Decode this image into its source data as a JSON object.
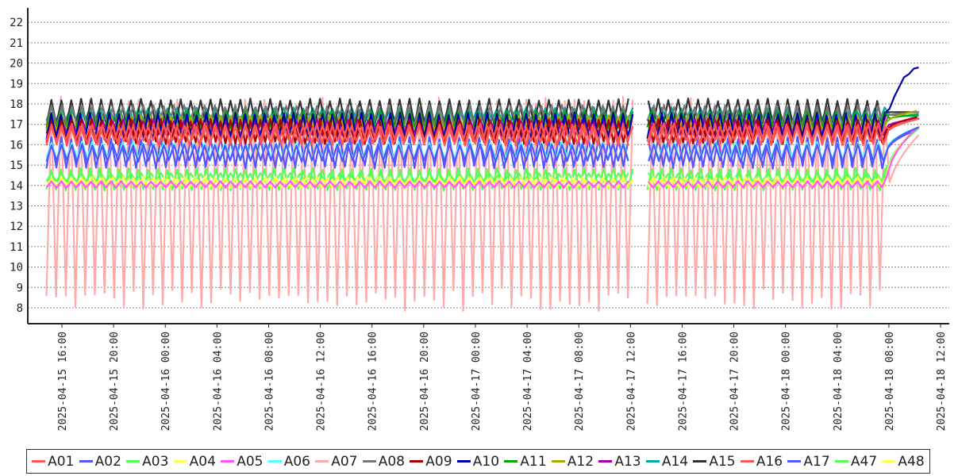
{
  "chart_data": {
    "type": "line",
    "title": "",
    "xlabel": "",
    "ylabel": "",
    "ylim": [
      7.2,
      22.7
    ],
    "yticks": [
      8,
      9,
      10,
      11,
      12,
      13,
      14,
      15,
      16,
      17,
      18,
      19,
      20,
      21,
      22
    ],
    "x_range_hours": [
      -1,
      68
    ],
    "x_ticks": [
      {
        "label": "2025-04-15 16:00",
        "hour": 0
      },
      {
        "label": "2025-04-15 20:00",
        "hour": 4
      },
      {
        "label": "2025-04-16 00:00",
        "hour": 8
      },
      {
        "label": "2025-04-16 04:00",
        "hour": 12
      },
      {
        "label": "2025-04-16 08:00",
        "hour": 16
      },
      {
        "label": "2025-04-16 12:00",
        "hour": 20
      },
      {
        "label": "2025-04-16 16:00",
        "hour": 24
      },
      {
        "label": "2025-04-16 20:00",
        "hour": 28
      },
      {
        "label": "2025-04-17 00:00",
        "hour": 32
      },
      {
        "label": "2025-04-17 04:00",
        "hour": 36
      },
      {
        "label": "2025-04-17 08:00",
        "hour": 40
      },
      {
        "label": "2025-04-17 12:00",
        "hour": 44
      },
      {
        "label": "2025-04-17 16:00",
        "hour": 48
      },
      {
        "label": "2025-04-17 20:00",
        "hour": 52
      },
      {
        "label": "2025-04-18 00:00",
        "hour": 56
      },
      {
        "label": "2025-04-18 04:00",
        "hour": 60
      },
      {
        "label": "2025-04-18 08:00",
        "hour": 64
      },
      {
        "label": "2025-04-18 12:00",
        "hour": 68
      }
    ],
    "data_start_hour": -1.2,
    "data_end_hour": 66.5,
    "gap_hours": [
      44.2,
      45.1
    ],
    "series": [
      {
        "name": "A07",
        "color": "#ffaaaa",
        "low": 8.4,
        "high": 17.8,
        "end_value": 16.6
      },
      {
        "name": "A02",
        "color": "#5555ff",
        "low": 14.9,
        "high": 16.3,
        "end_value": 16.8
      },
      {
        "name": "A06",
        "color": "#55ffff",
        "low": 15.3,
        "high": 16.1,
        "end_value": 16.9
      },
      {
        "name": "A03",
        "color": "#55ff55",
        "low": 13.8,
        "high": 14.8,
        "end_value": 16.9
      },
      {
        "name": "A47",
        "color": "#55ff55",
        "low": 14.2,
        "high": 14.6,
        "end_value": 16.9
      },
      {
        "name": "A04",
        "color": "#ffff55",
        "low": 13.9,
        "high": 14.4,
        "end_value": 17.0
      },
      {
        "name": "A48",
        "color": "#ffff55",
        "low": 14.0,
        "high": 14.3,
        "end_value": 17.0
      },
      {
        "name": "A05",
        "color": "#ff55ff",
        "low": 13.9,
        "high": 14.2,
        "end_value": 17.0
      },
      {
        "name": "A17",
        "color": "#5555ff",
        "low": 15.2,
        "high": 16.0,
        "end_value": 16.9
      },
      {
        "name": "A14",
        "color": "#00aaaa",
        "low": 17.2,
        "high": 17.8,
        "end_value": 17.4
      },
      {
        "name": "A15",
        "color": "#333333",
        "low": 17.0,
        "high": 18.2,
        "end_value": 17.6
      },
      {
        "name": "A08",
        "color": "#777777",
        "low": 16.9,
        "high": 17.9,
        "end_value": 17.6
      },
      {
        "name": "A11",
        "color": "#00aa00",
        "low": 16.8,
        "high": 17.6,
        "end_value": 17.5
      },
      {
        "name": "A12",
        "color": "#aaaa00",
        "low": 16.7,
        "high": 17.4,
        "end_value": 17.7
      },
      {
        "name": "A13",
        "color": "#aa00aa",
        "low": 16.5,
        "high": 17.2,
        "end_value": 17.3
      },
      {
        "name": "A10",
        "color": "#0000aa",
        "low": 16.3,
        "high": 17.5,
        "end_value": 20.1
      },
      {
        "name": "A09",
        "color": "#aa0000",
        "low": 16.1,
        "high": 17.2,
        "end_value": 17.4
      },
      {
        "name": "A01",
        "color": "#ff5555",
        "low": 16.0,
        "high": 17.0,
        "end_value": 17.3
      },
      {
        "name": "A16",
        "color": "#ff5555",
        "low": 16.2,
        "high": 16.9,
        "end_value": 17.3
      }
    ]
  },
  "legend": [
    {
      "label": "A01",
      "color": "#ff5555"
    },
    {
      "label": "A02",
      "color": "#5555ff"
    },
    {
      "label": "A03",
      "color": "#55ff55"
    },
    {
      "label": "A04",
      "color": "#ffff55"
    },
    {
      "label": "A05",
      "color": "#ff55ff"
    },
    {
      "label": "A06",
      "color": "#55ffff"
    },
    {
      "label": "A07",
      "color": "#ffaaaa"
    },
    {
      "label": "A08",
      "color": "#777777"
    },
    {
      "label": "A09",
      "color": "#aa0000"
    },
    {
      "label": "A10",
      "color": "#0000aa"
    },
    {
      "label": "A11",
      "color": "#00aa00"
    },
    {
      "label": "A12",
      "color": "#aaaa00"
    },
    {
      "label": "A13",
      "color": "#aa00aa"
    },
    {
      "label": "A14",
      "color": "#00aaaa"
    },
    {
      "label": "A15",
      "color": "#333333"
    },
    {
      "label": "A16",
      "color": "#ff5555"
    },
    {
      "label": "A17",
      "color": "#5555ff"
    },
    {
      "label": "A47",
      "color": "#55ff55"
    },
    {
      "label": "A48",
      "color": "#ffff55"
    }
  ]
}
